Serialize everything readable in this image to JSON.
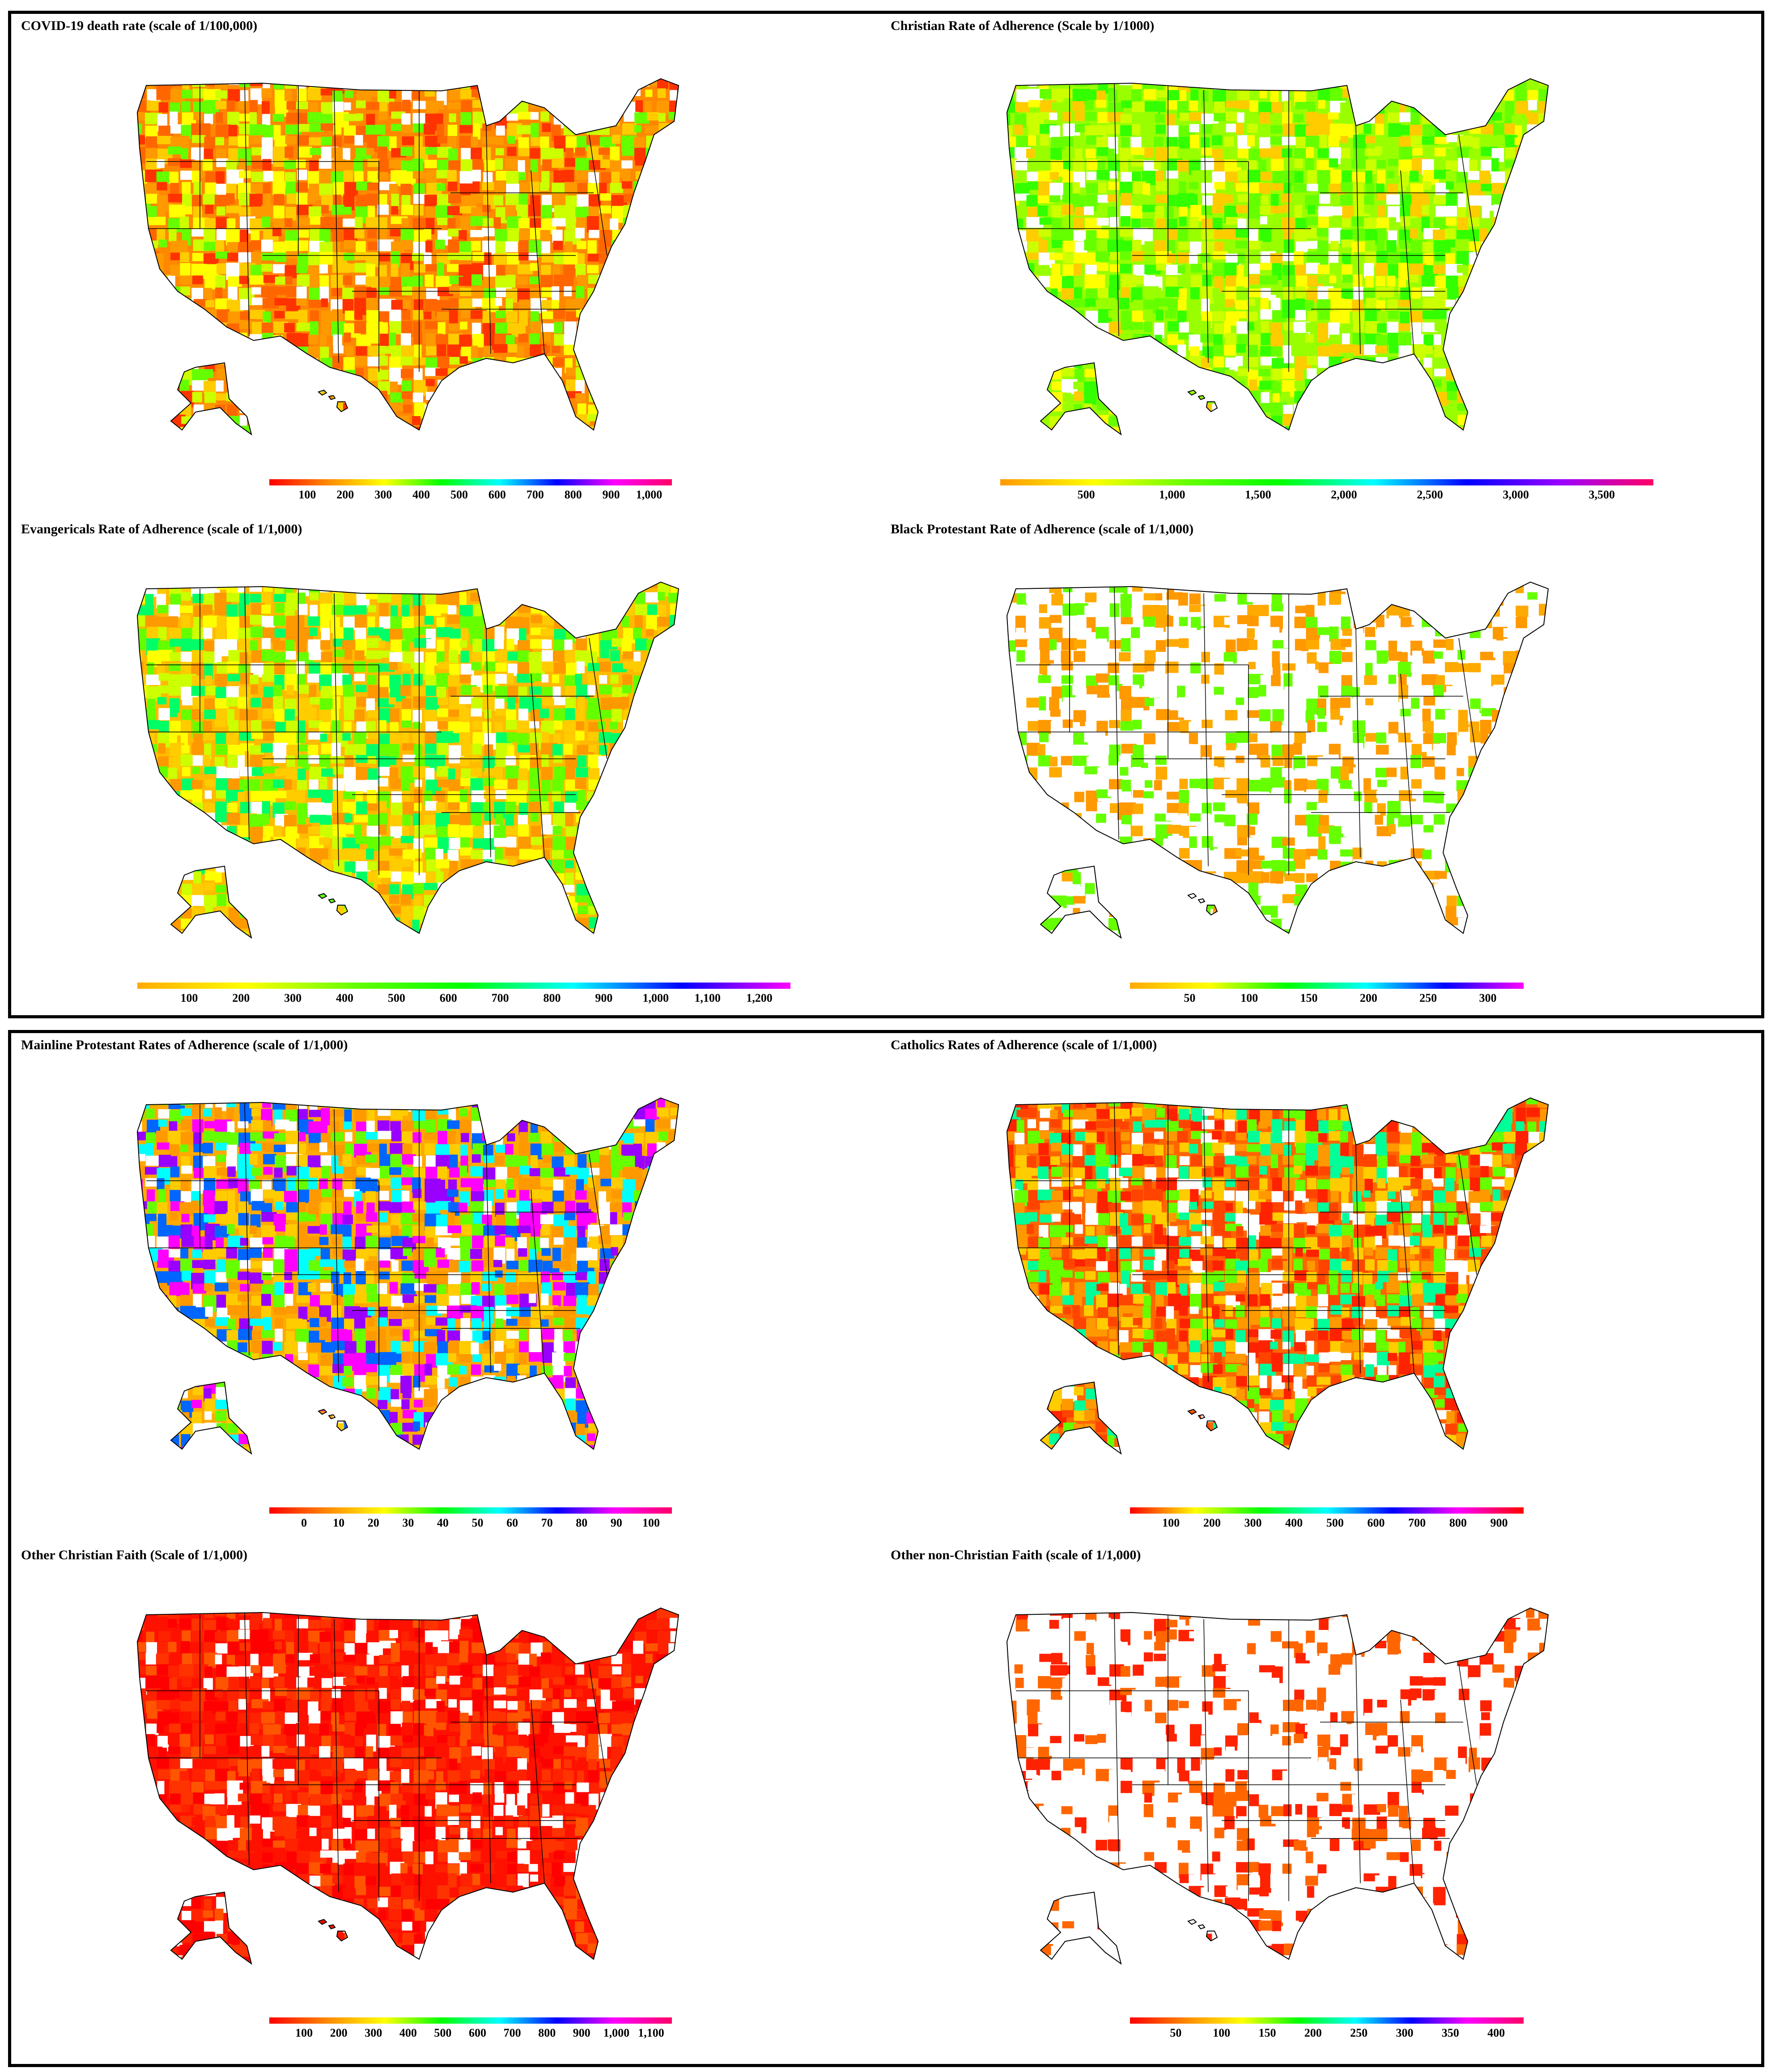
{
  "groups": [
    {
      "panels": [
        {
          "title": "COVID-19 death rate (scale of 1/100,000)",
          "ticks": [
            "100",
            "200",
            "300",
            "400",
            "500",
            "600",
            "700",
            "800",
            "900",
            "1,000"
          ],
          "gradient": [
            "#ff0000",
            "#ff8800",
            "#ffff00",
            "#00ff00",
            "#00ffff",
            "#0000ff",
            "#ff00ff",
            "#ff0066"
          ],
          "palette": [
            "#ff3300",
            "#ff6600",
            "#ff9900",
            "#ffcc00",
            "#ffff00",
            "#ccff00",
            "#66ff00",
            "#ffffff"
          ],
          "base": "#ff8800"
        },
        {
          "title": "Christian Rate of Adherence (Scale by 1/1000)",
          "ticks": [
            "500",
            "1,000",
            "1,500",
            "2,000",
            "2,500",
            "3,000",
            "3,500"
          ],
          "gradient": [
            "#ff9900",
            "#ffff00",
            "#66ff00",
            "#00ff00",
            "#00ffff",
            "#0000ff",
            "#9900ff",
            "#ff0066"
          ],
          "palette": [
            "#ccff00",
            "#99ff00",
            "#66ff00",
            "#33ff00",
            "#ffff00",
            "#ffffff",
            "#ffcc00"
          ],
          "base": "#99ff00"
        },
        {
          "title": "Evangericals Rate of Adherence (scale of 1/1,000)",
          "ticks": [
            "100",
            "200",
            "300",
            "400",
            "500",
            "600",
            "700",
            "800",
            "900",
            "1,000",
            "1,100",
            "1,200"
          ],
          "gradient": [
            "#ffaa00",
            "#ffff00",
            "#66ff00",
            "#00ff00",
            "#00ffff",
            "#0000ff",
            "#ff00ff"
          ],
          "palette": [
            "#ffcc00",
            "#ff9900",
            "#ffff00",
            "#ccff00",
            "#66ff00",
            "#00ff66",
            "#ffffff"
          ],
          "base": "#ffbb00"
        },
        {
          "title": "Black Protestant Rate of Adherence (scale of 1/1,000)",
          "ticks": [
            "50",
            "100",
            "150",
            "200",
            "250",
            "300"
          ],
          "gradient": [
            "#ffaa00",
            "#ffff00",
            "#00ff00",
            "#00ffff",
            "#0000ff",
            "#ff00ff"
          ],
          "palette": [
            "#ffffff",
            "#ffffff",
            "#ffffff",
            "#ff9900",
            "#ffaa00",
            "#ffffff",
            "#66ff00"
          ],
          "base": "#ffffff"
        }
      ]
    },
    {
      "panels": [
        {
          "title": "Mainline Protestant Rates of Adherence (scale of 1/1,000)",
          "ticks": [
            "0",
            "10",
            "20",
            "30",
            "40",
            "50",
            "60",
            "70",
            "80",
            "90",
            "100"
          ],
          "gradient": [
            "#ff0000",
            "#ff8800",
            "#ffff00",
            "#00ff00",
            "#00ffff",
            "#0000ff",
            "#ff00ff",
            "#ff0066"
          ],
          "palette": [
            "#ff9900",
            "#ffcc00",
            "#00ffff",
            "#0066ff",
            "#ff00ff",
            "#66ff00",
            "#ffffff",
            "#9900ff"
          ],
          "base": "#ffaa00"
        },
        {
          "title": "Catholics Rates of Adherence (scale of 1/1,000)",
          "ticks": [
            "100",
            "200",
            "300",
            "400",
            "500",
            "600",
            "700",
            "800",
            "900"
          ],
          "gradient": [
            "#ff0000",
            "#ffff00",
            "#00ff00",
            "#00ffff",
            "#0000ff",
            "#ff00ff",
            "#ff0000"
          ],
          "palette": [
            "#ff2200",
            "#ff4400",
            "#ff9900",
            "#ffcc00",
            "#66ff00",
            "#ffffff",
            "#00ff99"
          ],
          "base": "#ff6600"
        },
        {
          "title": "Other Christian Faith (Scale of 1/1,000)",
          "ticks": [
            "100",
            "200",
            "300",
            "400",
            "500",
            "600",
            "700",
            "800",
            "900",
            "1,000",
            "1,100"
          ],
          "gradient": [
            "#ff0000",
            "#ff8800",
            "#ffff00",
            "#00ff00",
            "#00ffff",
            "#0000ff",
            "#ff00ff",
            "#ff0066"
          ],
          "palette": [
            "#ff0000",
            "#ff1100",
            "#ff2200",
            "#ffffff",
            "#ff3300",
            "#ff5500"
          ],
          "base": "#ff1100"
        },
        {
          "title": "Other non-Christian Faith (scale of 1/1,000)",
          "ticks": [
            "50",
            "100",
            "150",
            "200",
            "250",
            "300",
            "350",
            "400"
          ],
          "gradient": [
            "#ff0000",
            "#ff8800",
            "#ffff00",
            "#00ff00",
            "#00ffff",
            "#0000ff",
            "#ff00ff",
            "#ff0066"
          ],
          "palette": [
            "#ffffff",
            "#ffffff",
            "#ffffff",
            "#ffffff",
            "#ff2200",
            "#ff6600",
            "#ffffff"
          ],
          "base": "#ffffff"
        }
      ]
    }
  ]
}
